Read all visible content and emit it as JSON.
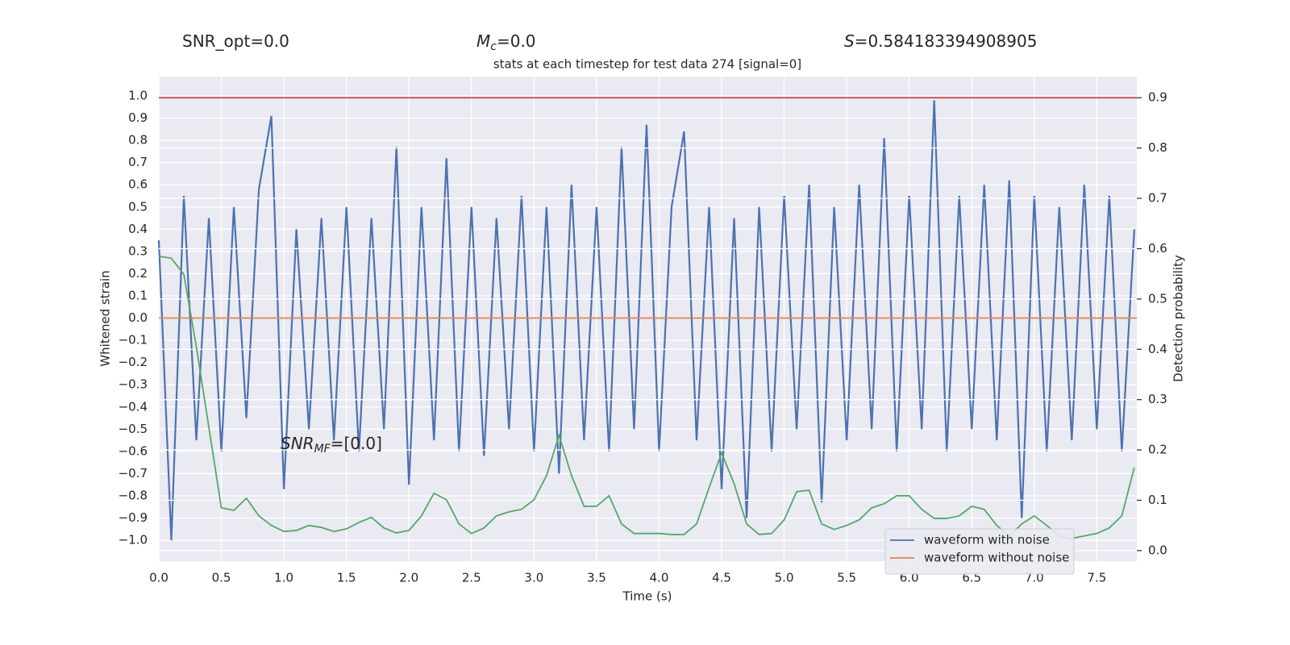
{
  "chart_data": {
    "type": "line",
    "annotations": [
      {
        "parts": [
          {
            "text": "SNR_opt=0.0"
          }
        ]
      },
      {
        "parts": [
          {
            "text": "M",
            "style": "italic"
          },
          {
            "text": "c",
            "style": "sub"
          },
          {
            "text": "=0.0"
          }
        ]
      },
      {
        "parts": [
          {
            "text": "S",
            "style": "italic"
          },
          {
            "text": "=0.584183394908905"
          }
        ]
      },
      {
        "parts": [
          {
            "text": "SNR",
            "style": "italic"
          },
          {
            "text": "MF",
            "style": "sub"
          },
          {
            "text": "=[0.0]"
          }
        ]
      }
    ],
    "title": "stats at each timestep for test data 274 [signal=0]",
    "x_label": "Time (s)",
    "y_label": "Whitened strain",
    "y2_label": "Detection probability",
    "xlim": [
      0,
      7.82
    ],
    "ylim": [
      -1.094,
      1.087
    ],
    "y2lim": [
      -0.021,
      0.942
    ],
    "xticks": [
      {
        "value": 0,
        "label": "0.0"
      },
      {
        "value": 0.5,
        "label": "0.5"
      },
      {
        "value": 1,
        "label": "1.0"
      },
      {
        "value": 1.5,
        "label": "1.5"
      },
      {
        "value": 2,
        "label": "2.0"
      },
      {
        "value": 2.5,
        "label": "2.5"
      },
      {
        "value": 3,
        "label": "3.0"
      },
      {
        "value": 3.5,
        "label": "3.5"
      },
      {
        "value": 4,
        "label": "4.0"
      },
      {
        "value": 4.5,
        "label": "4.5"
      },
      {
        "value": 5,
        "label": "5.0"
      },
      {
        "value": 5.5,
        "label": "5.5"
      },
      {
        "value": 6,
        "label": "6.0"
      },
      {
        "value": 6.5,
        "label": "6.5"
      },
      {
        "value": 7,
        "label": "7.0"
      },
      {
        "value": 7.5,
        "label": "7.5"
      }
    ],
    "yticks": [
      {
        "value": -1,
        "label": "−1.0"
      },
      {
        "value": -0.9,
        "label": "−0.9"
      },
      {
        "value": -0.8,
        "label": "−0.8"
      },
      {
        "value": -0.7,
        "label": "−0.7"
      },
      {
        "value": -0.6,
        "label": "−0.6"
      },
      {
        "value": -0.5,
        "label": "−0.5"
      },
      {
        "value": -0.4,
        "label": "−0.4"
      },
      {
        "value": -0.3,
        "label": "−0.3"
      },
      {
        "value": -0.2,
        "label": "−0.2"
      },
      {
        "value": -0.1,
        "label": "−0.1"
      },
      {
        "value": 0,
        "label": "0.0"
      },
      {
        "value": 0.1,
        "label": "0.1"
      },
      {
        "value": 0.2,
        "label": "0.2"
      },
      {
        "value": 0.3,
        "label": "0.3"
      },
      {
        "value": 0.4,
        "label": "0.4"
      },
      {
        "value": 0.5,
        "label": "0.5"
      },
      {
        "value": 0.6,
        "label": "0.6"
      },
      {
        "value": 0.7,
        "label": "0.7"
      },
      {
        "value": 0.8,
        "label": "0.8"
      },
      {
        "value": 0.9,
        "label": "0.9"
      },
      {
        "value": 1,
        "label": "1.0"
      }
    ],
    "y2ticks": [
      {
        "value": 0,
        "label": "0.0"
      },
      {
        "value": 0.1,
        "label": "0.1"
      },
      {
        "value": 0.2,
        "label": "0.2"
      },
      {
        "value": 0.3,
        "label": "0.3"
      },
      {
        "value": 0.4,
        "label": "0.4"
      },
      {
        "value": 0.5,
        "label": "0.5"
      },
      {
        "value": 0.6,
        "label": "0.6"
      },
      {
        "value": 0.7,
        "label": "0.7"
      },
      {
        "value": 0.8,
        "label": "0.8"
      },
      {
        "value": 0.9,
        "label": "0.9"
      }
    ],
    "grid": true,
    "legend": "lower right",
    "x": [
      0,
      0.1,
      0.2,
      0.3,
      0.4,
      0.5,
      0.6,
      0.7,
      0.8,
      0.9,
      1.0,
      1.1,
      1.2,
      1.3,
      1.4,
      1.5,
      1.6,
      1.7,
      1.8,
      1.9,
      2.0,
      2.1,
      2.2,
      2.3,
      2.4,
      2.5,
      2.6,
      2.7,
      2.8,
      2.9,
      3.0,
      3.1,
      3.2,
      3.3,
      3.4,
      3.5,
      3.6,
      3.7,
      3.8,
      3.9,
      4.0,
      4.1,
      4.2,
      4.3,
      4.4,
      4.5,
      4.6,
      4.7,
      4.8,
      4.9,
      5.0,
      5.1,
      5.2,
      5.3,
      5.4,
      5.5,
      5.6,
      5.7,
      5.8,
      5.9,
      6.0,
      6.1,
      6.2,
      6.3,
      6.4,
      6.5,
      6.6,
      6.7,
      6.8,
      6.9,
      7.0,
      7.1,
      7.2,
      7.3,
      7.4,
      7.5,
      7.6,
      7.7,
      7.8
    ],
    "series": [
      {
        "name": "waveform with noise",
        "color": "#4c72b0",
        "values": [
          0.35,
          -1.0,
          0.55,
          -0.55,
          0.45,
          -0.6,
          0.5,
          -0.45,
          0.58,
          0.91,
          -0.77,
          0.4,
          -0.5,
          0.45,
          -0.55,
          0.5,
          -0.6,
          0.45,
          -0.5,
          0.77,
          -0.75,
          0.5,
          -0.55,
          0.72,
          -0.6,
          0.5,
          -0.62,
          0.45,
          -0.5,
          0.55,
          -0.6,
          0.5,
          -0.7,
          0.6,
          -0.55,
          0.5,
          -0.6,
          0.77,
          -0.5,
          0.87,
          -0.6,
          0.5,
          0.84,
          -0.55,
          0.5,
          -0.77,
          0.45,
          -0.9,
          0.5,
          -0.6,
          0.55,
          -0.5,
          0.6,
          -0.83,
          0.5,
          -0.55,
          0.6,
          -0.5,
          0.81,
          -0.6,
          0.55,
          -0.5,
          0.98,
          -0.6,
          0.55,
          -0.5,
          0.6,
          -0.55,
          0.62,
          -0.9,
          0.55,
          -0.6,
          0.5,
          -0.55,
          0.6,
          -0.5,
          0.55,
          -0.6,
          0.4
        ]
      },
      {
        "name": "waveform without noise",
        "color": "#dd8452",
        "x": [
          0,
          7.82
        ],
        "values": [
          0,
          0
        ]
      },
      {
        "color": "#55a868",
        "axis": "y2",
        "values": [
          0.585,
          0.581,
          0.549,
          0.405,
          0.245,
          0.085,
          0.08,
          0.104,
          0.069,
          0.05,
          0.038,
          0.04,
          0.05,
          0.046,
          0.038,
          0.043,
          0.056,
          0.066,
          0.045,
          0.035,
          0.04,
          0.069,
          0.114,
          0.101,
          0.053,
          0.034,
          0.045,
          0.069,
          0.077,
          0.082,
          0.101,
          0.149,
          0.229,
          0.149,
          0.088,
          0.088,
          0.109,
          0.053,
          0.034,
          0.034,
          0.034,
          0.032,
          0.032,
          0.053,
          0.125,
          0.194,
          0.133,
          0.053,
          0.032,
          0.034,
          0.061,
          0.117,
          0.12,
          0.053,
          0.042,
          0.05,
          0.061,
          0.085,
          0.093,
          0.109,
          0.109,
          0.082,
          0.064,
          0.064,
          0.069,
          0.088,
          0.082,
          0.05,
          0.029,
          0.053,
          0.069,
          0.05,
          0.029,
          0.024,
          0.029,
          0.034,
          0.045,
          0.069,
          0.165
        ]
      }
    ],
    "hlines": [
      {
        "value": 0.9,
        "axis": "y2",
        "color": "#c44e52"
      }
    ]
  }
}
